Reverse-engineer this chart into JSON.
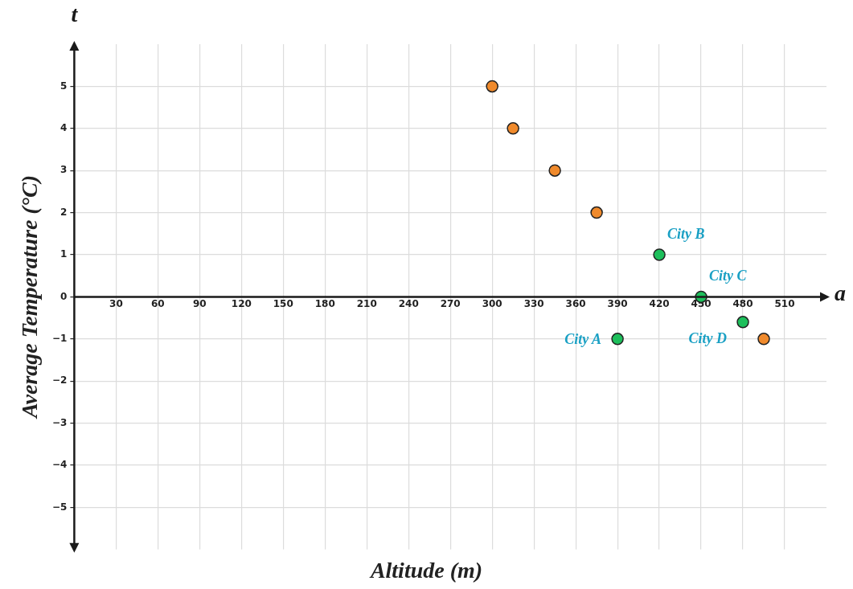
{
  "chart_data": {
    "type": "scatter",
    "xlabel": "Altitude (m)",
    "ylabel": "Average Temperature (°C)",
    "series": [
      {
        "color": "#f08a2c",
        "x": [
          300,
          315,
          345,
          375,
          495
        ],
        "values": [
          5,
          4,
          3,
          2,
          -1
        ]
      },
      {
        "color": "#1dbf5b",
        "x": [
          390,
          420,
          450,
          480
        ],
        "values": [
          -1,
          1,
          0,
          -0.6
        ]
      }
    ],
    "annotations": [
      "t",
      "a",
      {
        "text": "City A",
        "x": 390,
        "y": -1
      },
      {
        "text": "City B",
        "x": 420,
        "y": 1
      },
      {
        "text": "City C",
        "x": 450,
        "y": 0
      },
      {
        "text": "City D",
        "x": 480,
        "y": -0.6
      }
    ],
    "xlim": [
      0,
      540
    ],
    "ylim": [
      -6,
      6
    ],
    "xticks": [
      30,
      60,
      90,
      120,
      150,
      180,
      210,
      240,
      270,
      300,
      330,
      360,
      390,
      420,
      450,
      480,
      510
    ],
    "yticks": [
      -5,
      -4,
      -3,
      -2,
      -1,
      0,
      1,
      2,
      3,
      4,
      5
    ],
    "grid": true,
    "legend": false,
    "marker": "circle"
  }
}
